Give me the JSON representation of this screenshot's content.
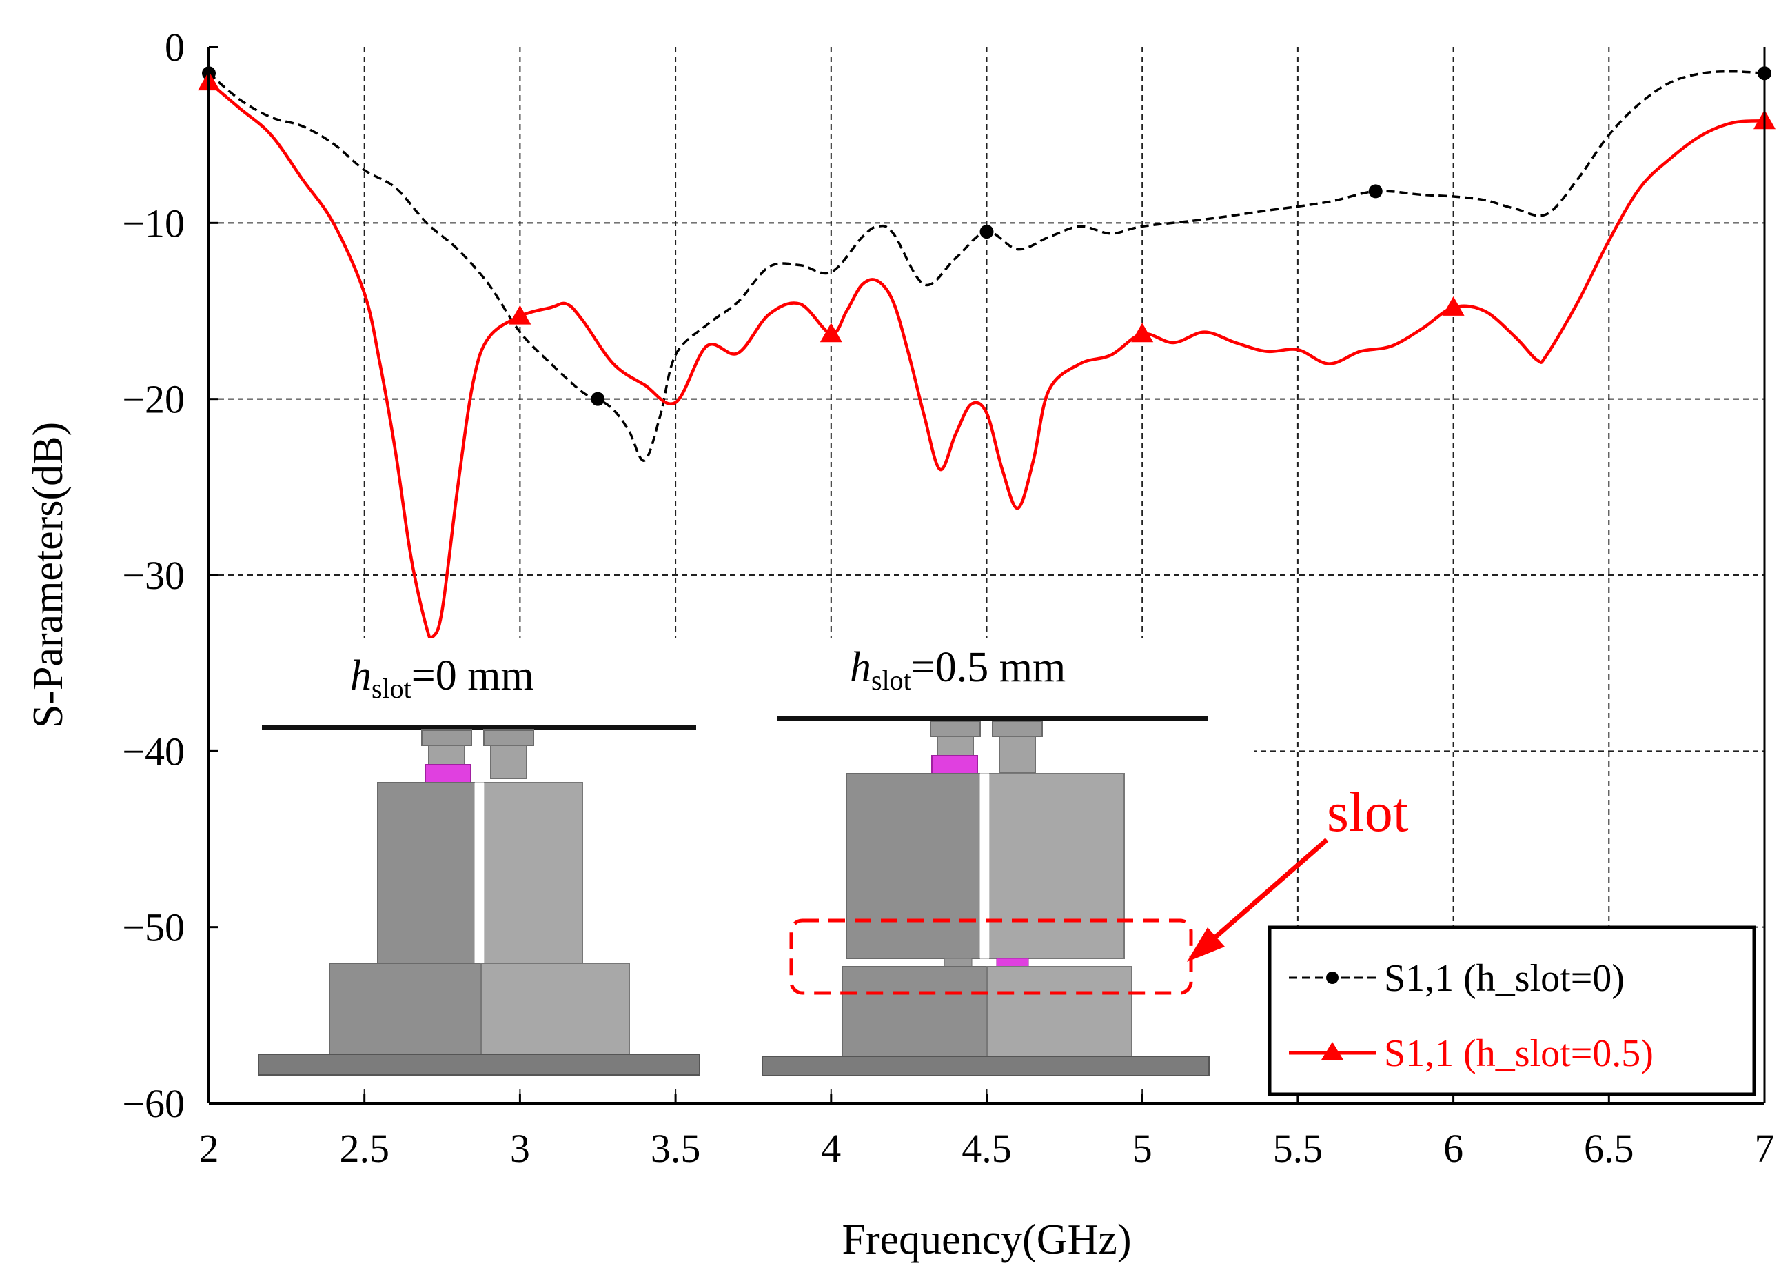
{
  "chart_data": {
    "type": "line",
    "title": "",
    "xlabel": "Frequency(GHz)",
    "ylabel": "S-Parameters(dB)",
    "xlim": [
      2,
      7
    ],
    "ylim": [
      -60,
      0
    ],
    "xticks": [
      2,
      2.5,
      3,
      3.5,
      4,
      4.5,
      5,
      5.5,
      6,
      6.5,
      7
    ],
    "xtick_labels": [
      "2",
      "2.5",
      "3",
      "3.5",
      "4",
      "4.5",
      "5",
      "5.5",
      "6",
      "6.5",
      "7"
    ],
    "yticks": [
      0,
      -10,
      -20,
      -30,
      -40,
      -50,
      -60
    ],
    "ytick_labels": [
      "0",
      "−10",
      "−20",
      "−30",
      "−40",
      "−50",
      "−60"
    ],
    "grid": true,
    "legend_position": "bottom-right",
    "series": [
      {
        "name": "S1,1 (h_slot=0)",
        "color": "#000000",
        "style": "dashed",
        "marker": "circle",
        "marker_x": [
          2,
          3.25,
          4.5,
          5.75,
          7
        ],
        "x": [
          2,
          2.1,
          2.2,
          2.3,
          2.4,
          2.5,
          2.6,
          2.7,
          2.8,
          2.9,
          3.0,
          3.1,
          3.2,
          3.25,
          3.3,
          3.35,
          3.4,
          3.45,
          3.5,
          3.6,
          3.7,
          3.8,
          3.9,
          4.0,
          4.1,
          4.15,
          4.2,
          4.3,
          4.4,
          4.5,
          4.6,
          4.7,
          4.8,
          4.9,
          5.0,
          5.2,
          5.4,
          5.6,
          5.75,
          5.9,
          6.0,
          6.1,
          6.2,
          6.3,
          6.4,
          6.5,
          6.6,
          6.7,
          6.8,
          6.9,
          7.0
        ],
        "y": [
          -1.5,
          -3,
          -4,
          -4.5,
          -5.5,
          -7,
          -8,
          -10,
          -11.5,
          -13.5,
          -16.2,
          -18,
          -19.6,
          -20,
          -20.6,
          -21.8,
          -23.5,
          -21,
          -17.5,
          -15.8,
          -14.5,
          -12.5,
          -12.4,
          -12.8,
          -10.8,
          -10.2,
          -10.6,
          -13.5,
          -12,
          -10.5,
          -11.5,
          -10.8,
          -10.2,
          -10.6,
          -10.2,
          -9.8,
          -9.3,
          -8.8,
          -8.2,
          -8.4,
          -8.5,
          -8.7,
          -9.2,
          -9.5,
          -7.5,
          -5,
          -3.2,
          -2,
          -1.5,
          -1.4,
          -1.5
        ]
      },
      {
        "name": "S1,1 (h_slot=0.5)",
        "color": "#ff0000",
        "style": "solid",
        "marker": "triangle",
        "marker_x": [
          2,
          3,
          4,
          5,
          6,
          7
        ],
        "x": [
          2,
          2.1,
          2.2,
          2.3,
          2.4,
          2.5,
          2.55,
          2.6,
          2.65,
          2.7,
          2.72,
          2.75,
          2.8,
          2.85,
          2.9,
          3.0,
          3.1,
          3.15,
          3.2,
          3.3,
          3.4,
          3.5,
          3.6,
          3.7,
          3.8,
          3.9,
          4.0,
          4.05,
          4.1,
          4.15,
          4.2,
          4.25,
          4.3,
          4.35,
          4.4,
          4.45,
          4.5,
          4.55,
          4.6,
          4.65,
          4.7,
          4.8,
          4.9,
          5.0,
          5.1,
          5.2,
          5.3,
          5.4,
          5.5,
          5.6,
          5.7,
          5.8,
          5.9,
          6.0,
          6.1,
          6.2,
          6.27,
          6.3,
          6.4,
          6.5,
          6.6,
          6.7,
          6.8,
          6.9,
          7.0
        ],
        "y": [
          -2,
          -3.5,
          -5,
          -7.5,
          -10,
          -14,
          -18,
          -23,
          -29,
          -33,
          -33.5,
          -32,
          -25,
          -19,
          -16.5,
          -15.3,
          -14.8,
          -14.6,
          -15.5,
          -18,
          -19.2,
          -20.2,
          -17,
          -17.4,
          -15.2,
          -14.6,
          -16.3,
          -15,
          -13.5,
          -13.3,
          -14.5,
          -17.5,
          -21,
          -24,
          -22,
          -20.3,
          -20.8,
          -24,
          -26.2,
          -23.5,
          -19.5,
          -18,
          -17.5,
          -16.3,
          -16.8,
          -16.2,
          -16.8,
          -17.3,
          -17.2,
          -18,
          -17.3,
          -17,
          -16,
          -14.8,
          -15,
          -16.5,
          -17.8,
          -17.5,
          -14.5,
          -11,
          -8,
          -6.3,
          -5,
          -4.3,
          -4.2
        ]
      }
    ],
    "insets": [
      {
        "title_italic": "h",
        "title_sub": "slot",
        "title_rest": "=0 mm"
      },
      {
        "title_italic": "h",
        "title_sub": "slot",
        "title_rest": "=0.5 mm"
      }
    ],
    "annotation": {
      "text": "slot",
      "color": "#ff0000"
    }
  }
}
